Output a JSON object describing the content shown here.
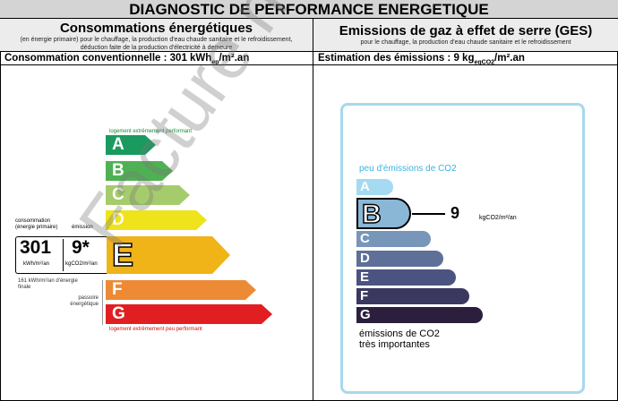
{
  "title": "DIAGNOSTIC DE PERFORMANCE ENERGETIQUE",
  "energy": {
    "heading": "Consommations énergétiques",
    "desc": "(en énergie primaire) pour le chauffage, la production d'eau chaude sanitaire et le refroidissement, déduction faite de la production d'électricité à demeure",
    "summary_prefix": "Consommation conventionnelle : 301 kWh",
    "summary_sub": "ep",
    "summary_suffix": "/m².an",
    "top_label": "logement extrêmement performant",
    "bottom_label": "logement extrêmement peu performant",
    "classes": [
      {
        "letter": "A",
        "color": "#1a9a5f"
      },
      {
        "letter": "B",
        "color": "#4fb153"
      },
      {
        "letter": "C",
        "color": "#a5cc6c"
      },
      {
        "letter": "D",
        "color": "#efe31b"
      },
      {
        "letter": "E",
        "color": "#f0b418"
      },
      {
        "letter": "F",
        "color": "#ec8a35"
      },
      {
        "letter": "G",
        "color": "#e11f22"
      }
    ],
    "selected": "E",
    "consumption_label": "consommation (énergie primaire)",
    "emission_label": "émission",
    "consumption_value": "301",
    "consumption_unit": "kWh/m²/an",
    "emission_value": "9*",
    "emission_unit": "kgCO2/m²/an",
    "final_energy": "161 kWh/m²/an d'énergie finale",
    "passoire": "passoire énergétique"
  },
  "ges": {
    "heading": "Emissions de gaz à effet de serre (GES)",
    "desc": "pour le chauffage, la production d'eau chaude sanitaire et le refroidissement",
    "summary_prefix": "Estimation des émissions : 9 kg",
    "summary_sub": "eqCO2",
    "summary_suffix": "/m².an",
    "top_label": "peu d'émissions de CO2",
    "bottom_label_1": "émissions de CO2",
    "bottom_label_2": "très importantes",
    "classes": [
      {
        "letter": "A",
        "color": "#a4daf2"
      },
      {
        "letter": "B",
        "color": "#8ab7d6"
      },
      {
        "letter": "C",
        "color": "#7896b9"
      },
      {
        "letter": "D",
        "color": "#5e6f98"
      },
      {
        "letter": "E",
        "color": "#4b5380"
      },
      {
        "letter": "F",
        "color": "#3b3860"
      },
      {
        "letter": "G",
        "color": "#2b1f3d"
      }
    ],
    "selected": "B",
    "value": "9",
    "unit": "kgCO2/m²/an",
    "border_color": "#a8d8ee"
  },
  "watermark": "Facture non"
}
